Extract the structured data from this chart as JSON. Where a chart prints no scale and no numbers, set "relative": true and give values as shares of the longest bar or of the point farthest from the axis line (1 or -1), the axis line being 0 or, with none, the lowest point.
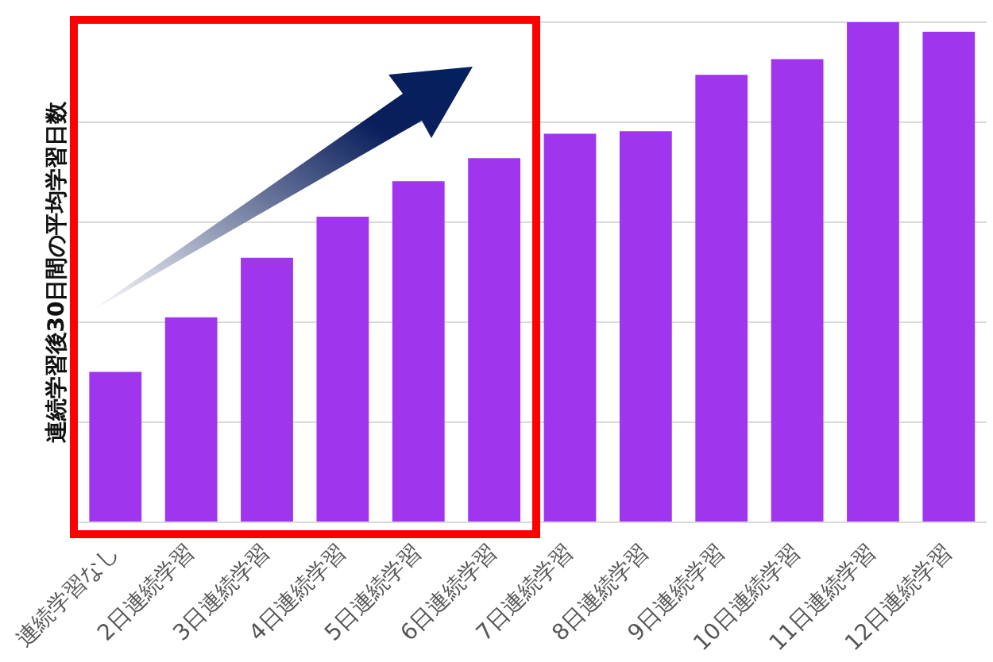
{
  "chart_data": {
    "type": "bar",
    "ylabel": "連続学習後30日間の平均学習日数",
    "categories": [
      "連続学習なし",
      "2日連続学習",
      "3日連続学習",
      "4日連続学習",
      "5日連続学習",
      "6日連続学習",
      "7日連続学習",
      "8日連続学習",
      "9日連続学習",
      "10日連続学習",
      "11日連続学習",
      "12日連続学習"
    ],
    "values": [
      0.301,
      0.41,
      0.529,
      0.611,
      0.682,
      0.728,
      0.777,
      0.782,
      0.895,
      0.926,
      1,
      0.981
    ],
    "color": "#a035ee",
    "relative": true,
    "grid": "y"
  }
}
